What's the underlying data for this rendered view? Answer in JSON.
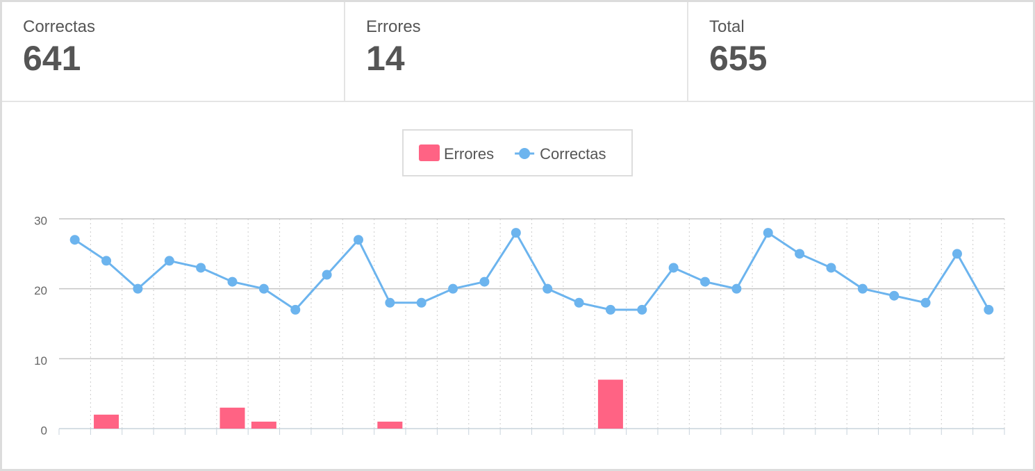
{
  "stats": [
    {
      "label": "Correctas",
      "value": 641
    },
    {
      "label": "Errores",
      "value": 14
    },
    {
      "label": "Total",
      "value": 655
    }
  ],
  "chart_data": {
    "type": "bar",
    "categories": [
      null,
      null,
      null,
      null,
      null,
      null,
      null,
      null,
      null,
      null,
      null,
      null,
      null,
      null,
      null,
      null,
      null,
      null,
      null,
      null,
      null,
      null,
      null,
      null,
      null,
      null,
      null,
      null,
      null,
      null
    ],
    "series": [
      {
        "name": "Errores",
        "type": "bar",
        "color": "#ff6384",
        "values": [
          0,
          2,
          0,
          0,
          0,
          3,
          1,
          0,
          0,
          0,
          1,
          0,
          0,
          0,
          0,
          0,
          0,
          7,
          0,
          0,
          0,
          0,
          0,
          0,
          0,
          0,
          0,
          0,
          0,
          0
        ]
      },
      {
        "name": "Correctas",
        "type": "line",
        "color": "#6cb4ee",
        "values": [
          27,
          24,
          20,
          24,
          23,
          21,
          20,
          17,
          22,
          27,
          18,
          18,
          20,
          21,
          28,
          20,
          18,
          17,
          17,
          23,
          21,
          20,
          28,
          25,
          23,
          20,
          19,
          18,
          25,
          17
        ]
      }
    ],
    "ylim": [
      0,
      30
    ],
    "yticks": [
      0,
      10,
      20,
      30
    ],
    "grid": true,
    "legend": "top"
  }
}
